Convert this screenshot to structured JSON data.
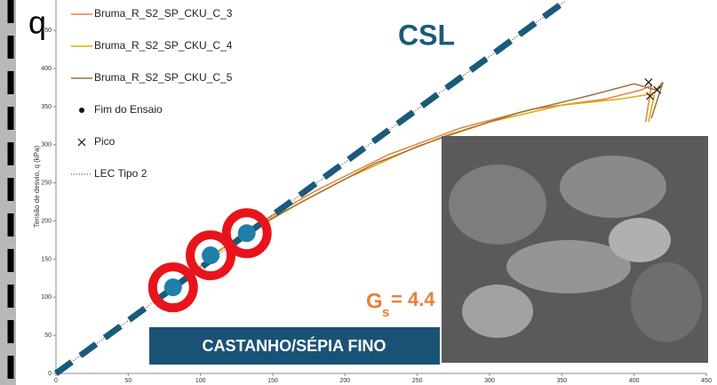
{
  "chart_data": {
    "type": "line",
    "xlim": [
      0,
      450
    ],
    "ylim": [
      0,
      490
    ],
    "xticks": [
      0,
      50,
      100,
      150,
      200,
      250,
      300,
      350,
      400,
      450
    ],
    "yticks": [
      0,
      50,
      100,
      150,
      200,
      250,
      300,
      350,
      400,
      450
    ],
    "y_label": "Tensão de desvio, q (kPa)",
    "q_label": "q",
    "p_label": "p’",
    "series": [
      {
        "name": "Bruma_R_S2_SP_CKU_C_3",
        "color": "#e8803a",
        "style": "line",
        "x": [
          80,
          130,
          180,
          230,
          280,
          330,
          380,
          405,
          412,
          408
        ],
        "values": [
          110,
          186,
          240,
          287,
          322,
          347,
          360,
          372,
          378,
          330
        ]
      },
      {
        "name": "Bruma_R_S2_SP_CKU_C_4",
        "color": "#e0a800",
        "style": "line",
        "x": [
          107,
          150,
          200,
          250,
          300,
          350,
          390,
          410,
          414,
          410
        ],
        "values": [
          155,
          205,
          255,
          298,
          330,
          352,
          360,
          366,
          365,
          330
        ]
      },
      {
        "name": "Bruma_R_S2_SP_CKU_C_5",
        "color": "#a0703a",
        "style": "line",
        "x": [
          132,
          170,
          220,
          270,
          320,
          370,
          400,
          415,
          420,
          412
        ],
        "values": [
          184,
          225,
          275,
          312,
          342,
          365,
          380,
          372,
          382,
          335
        ]
      },
      {
        "name": "Fim do Ensaio",
        "color": "#111111",
        "style": "dot",
        "x": [],
        "values": []
      },
      {
        "name": "Pico",
        "color": "#111111",
        "style": "cross",
        "x": [
          410,
          416,
          411
        ],
        "values": [
          382,
          372,
          364
        ]
      },
      {
        "name": "LEC Tipo 2",
        "color": "#333333",
        "style": "dotted",
        "x": [
          0,
          352
        ],
        "values": [
          0,
          488
        ]
      }
    ],
    "csl_line": {
      "color": "#1a5a7a",
      "x": [
        0,
        352
      ],
      "values": [
        0,
        488
      ]
    },
    "points": {
      "color": "#1f7fa8",
      "ring_color": "#e8141c",
      "x": [
        81,
        107,
        132
      ],
      "values": [
        113,
        155,
        184
      ]
    },
    "csl_text": "CSL",
    "gs": {
      "symbol": "G",
      "subscript": "s",
      "value_text": "= 4.4"
    },
    "sample_label": "CASTANHO/SÉPIA FINO"
  }
}
